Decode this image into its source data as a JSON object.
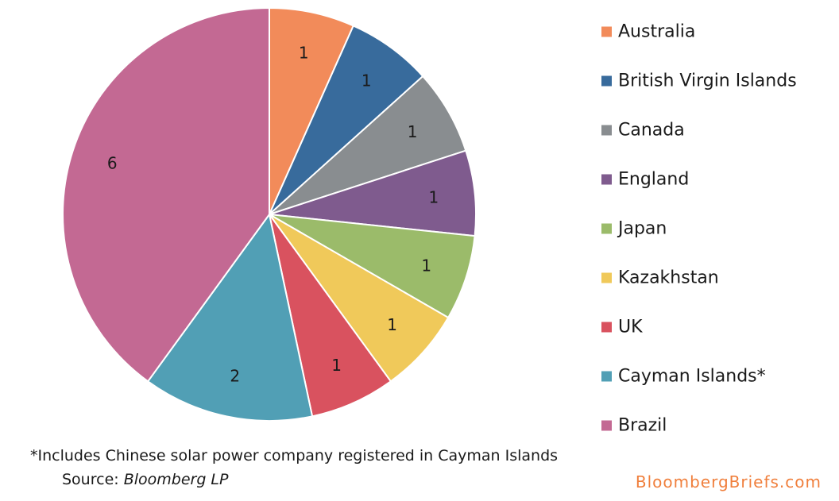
{
  "chart_data": {
    "type": "pie",
    "title": "",
    "start_angle_deg": 0,
    "direction": "clockwise",
    "slices": [
      {
        "label": "Australia",
        "value": 1,
        "color": "#f28b5a"
      },
      {
        "label": "British Virgin Islands",
        "value": 1,
        "color": "#386b9c"
      },
      {
        "label": "Canada",
        "value": 1,
        "color": "#898d90"
      },
      {
        "label": "England",
        "value": 1,
        "color": "#7f5b8e"
      },
      {
        "label": "Japan",
        "value": 1,
        "color": "#9bbb6a"
      },
      {
        "label": "Kazakhstan",
        "value": 1,
        "color": "#f0c95a"
      },
      {
        "label": "UK",
        "value": 1,
        "color": "#d9525f"
      },
      {
        "label": "Cayman Islands*",
        "value": 2,
        "color": "#519fb5"
      },
      {
        "label": "Brazil",
        "value": 6,
        "color": "#c36993"
      }
    ],
    "data_labels": true,
    "legend_position": "right"
  },
  "footnote": "*Includes Chinese solar power company registered in Cayman Islands",
  "source": {
    "prefix": "Source: ",
    "name": "Bloomberg LP"
  },
  "brand": "BloombergBriefs.com"
}
